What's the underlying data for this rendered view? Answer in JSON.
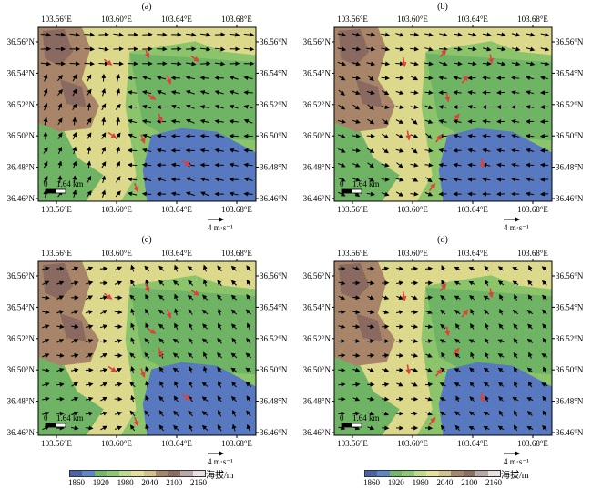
{
  "panels": [
    {
      "label": "(a)",
      "pattern": "a"
    },
    {
      "label": "(b)",
      "pattern": "b"
    },
    {
      "label": "(c)",
      "pattern": "c"
    },
    {
      "label": "(d)",
      "pattern": "d"
    }
  ],
  "lon_ticks": [
    "103.56°E",
    "103.60°E",
    "103.64°E",
    "103.68°E"
  ],
  "lat_ticks": [
    "36.56°N",
    "36.54°N",
    "36.52°N",
    "36.50°N",
    "36.48°N",
    "36.46°N"
  ],
  "scale_bar": {
    "start": "0",
    "end": "1.64 km"
  },
  "vector_key": {
    "label": "4 m·s⁻¹"
  },
  "colorbar": {
    "ticks": [
      "1860",
      "1920",
      "1980",
      "2040",
      "2100",
      "2160"
    ],
    "unit": "海拔/m",
    "colors": [
      "#4a62a8",
      "#5f86c8",
      "#72b86a",
      "#8cc873",
      "#bfdc8c",
      "#e6e09c",
      "#d2c28c",
      "#a6866a",
      "#8c6e60",
      "#b8a8a8",
      "#e8e0e0"
    ]
  },
  "colors": {
    "background": "#ffffff",
    "water": "#5878c0",
    "lowland": "#6eb464",
    "midland": "#8cc46c",
    "plateau": "#dcd88c",
    "hill": "#a88468",
    "peak": "#8a6a60",
    "wind_vector": "#000000",
    "highlight_vector": "#e0403a"
  }
}
